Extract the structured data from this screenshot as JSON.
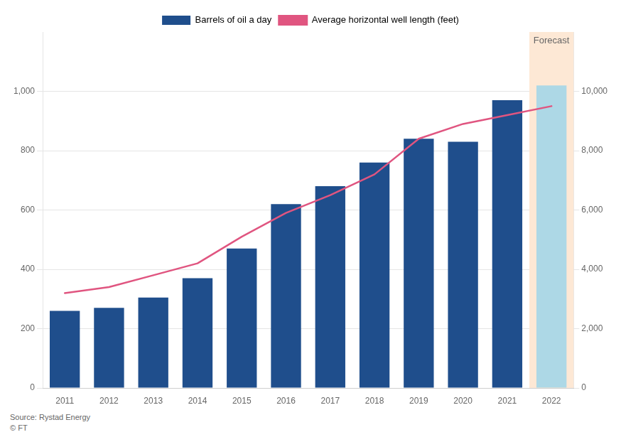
{
  "chart_data": {
    "type": "bar",
    "categories": [
      "2011",
      "2012",
      "2013",
      "2014",
      "2015",
      "2016",
      "2017",
      "2018",
      "2019",
      "2020",
      "2021",
      "2022"
    ],
    "series": [
      {
        "name": "Barrels of oil a day",
        "type": "bar",
        "color": "#1f4e8c",
        "colors": [
          "#1f4e8c",
          "#1f4e8c",
          "#1f4e8c",
          "#1f4e8c",
          "#1f4e8c",
          "#1f4e8c",
          "#1f4e8c",
          "#1f4e8c",
          "#1f4e8c",
          "#1f4e8c",
          "#1f4e8c",
          "#add8e6"
        ],
        "values": [
          260,
          270,
          305,
          370,
          470,
          620,
          680,
          760,
          840,
          830,
          970,
          1020
        ]
      },
      {
        "name": "Average horizontal well length (feet)",
        "type": "line",
        "axis": "y2",
        "color": "#e05580",
        "values": [
          3200,
          3400,
          3800,
          4200,
          5100,
          5900,
          6500,
          7200,
          8400,
          8900,
          9200,
          9500
        ]
      }
    ],
    "ylim": [
      0,
      1200
    ],
    "yticks": [
      0,
      200,
      400,
      600,
      800,
      {
        "value": 1000,
        "label": "1,000"
      }
    ],
    "y2lim": [
      0,
      12000
    ],
    "y2ticks": [
      0,
      {
        "value": 2000,
        "label": "2,000"
      },
      {
        "value": 4000,
        "label": "4,000"
      },
      {
        "value": 6000,
        "label": "6,000"
      },
      {
        "value": 8000,
        "label": "8,000"
      },
      {
        "value": 10000,
        "label": "10,000"
      }
    ],
    "grid": true,
    "legend": "top",
    "annotations": [
      {
        "text": "Forecast",
        "x": "2022",
        "color": "#fde8d5"
      }
    ],
    "source": "Source: Rystad Energy\n© FT"
  }
}
